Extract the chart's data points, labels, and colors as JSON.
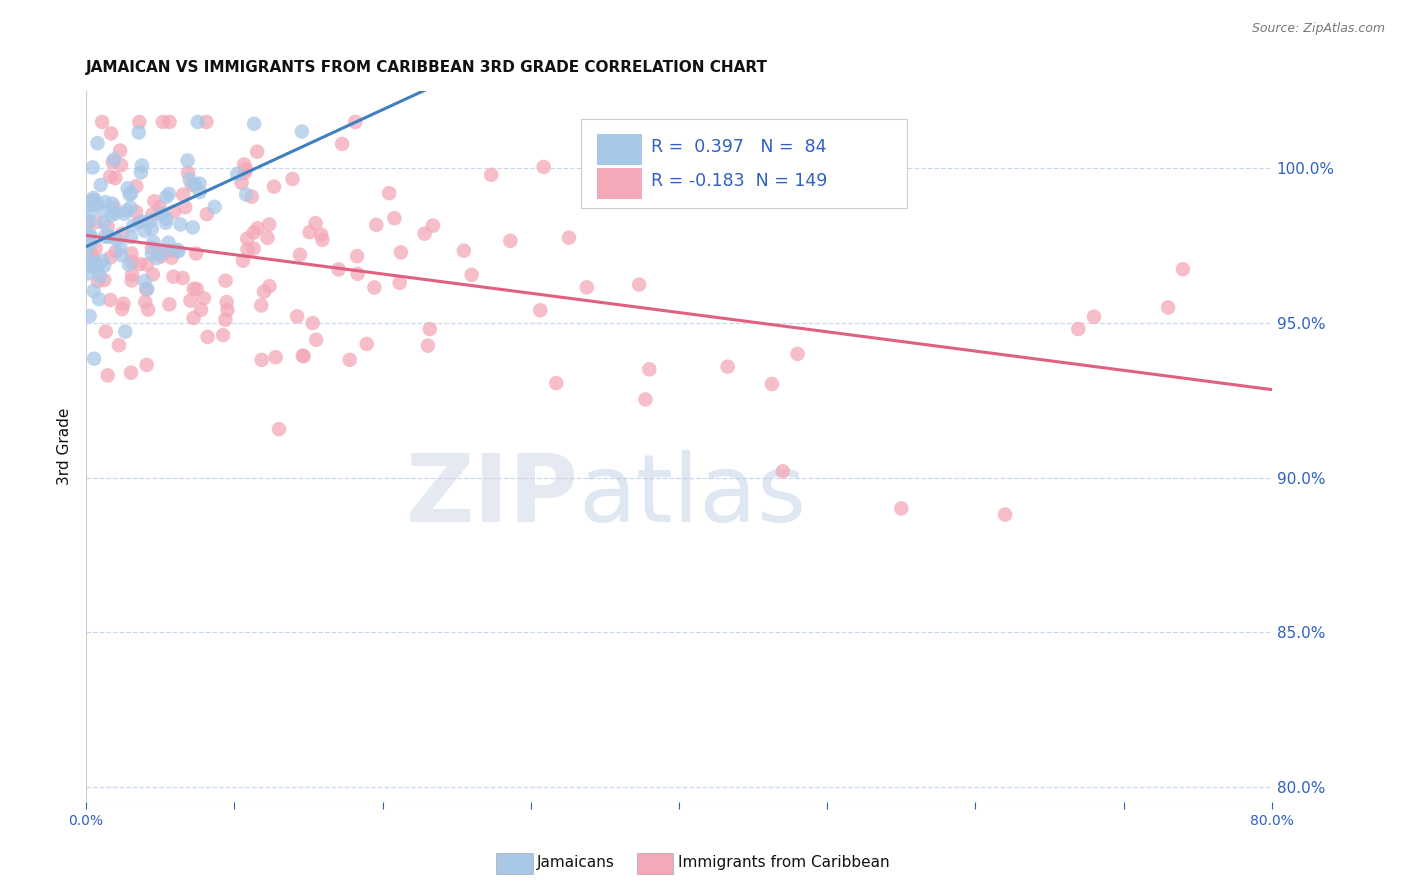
{
  "title": "JAMAICAN VS IMMIGRANTS FROM CARIBBEAN 3RD GRADE CORRELATION CHART",
  "source": "Source: ZipAtlas.com",
  "ylabel": "3rd Grade",
  "y_right_ticks": [
    "100.0%",
    "95.0%",
    "90.0%",
    "85.0%",
    "80.0%"
  ],
  "y_right_values": [
    100.0,
    95.0,
    90.0,
    85.0,
    80.0
  ],
  "xlim": [
    0.0,
    80.0
  ],
  "ylim": [
    79.5,
    102.5
  ],
  "R_blue": 0.397,
  "N_blue": 84,
  "R_pink": -0.183,
  "N_pink": 149,
  "blue_color": "#A8C8E8",
  "pink_color": "#F4A8B8",
  "blue_line_color": "#4080C0",
  "pink_line_color": "#E06080",
  "legend_label_blue": "Jamaicans",
  "legend_label_pink": "Immigrants from Caribbean",
  "watermark_zip": "ZIP",
  "watermark_atlas": "atlas",
  "background_color": "#ffffff",
  "grid_color": "#c8d8ee",
  "title_color": "#111111",
  "source_color": "#777777",
  "axis_label_color": "#111111",
  "tick_color": "#3060C0"
}
